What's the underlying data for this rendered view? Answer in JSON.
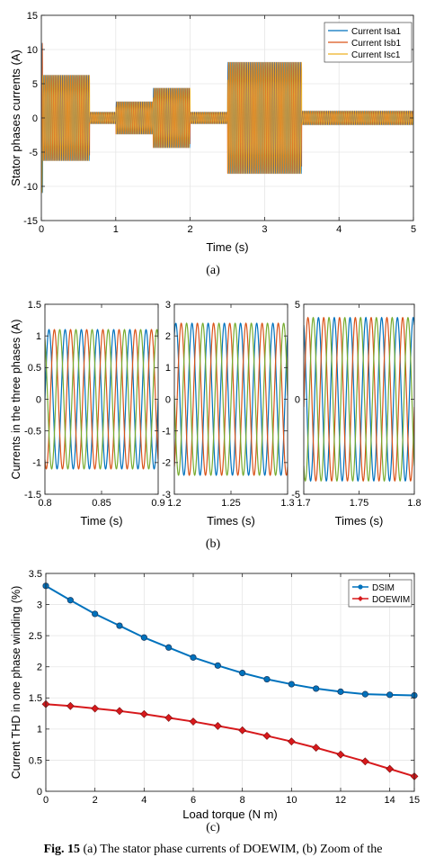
{
  "figure": {
    "caption_label": "Fig. 15",
    "caption_text": "(a) The stator phase currents of DOEWIM, (b) Zoom of the"
  },
  "chart_data": [
    {
      "type": "line",
      "panel_label": "(a)",
      "xlabel": "Time (s)",
      "ylabel": "Stator phases currents (A)",
      "xlim": [
        0,
        5
      ],
      "ylim": [
        -15,
        15
      ],
      "xticks": [
        0,
        1,
        2,
        3,
        4,
        5
      ],
      "yticks": [
        -15,
        -10,
        -5,
        0,
        5,
        10,
        15
      ],
      "grid": true,
      "legend_position": "top-right",
      "series": [
        {
          "name": "Current Isa1",
          "color": "#0072BD",
          "phase_deg": 0
        },
        {
          "name": "Current Isb1",
          "color": "#D95319",
          "phase_deg": -120
        },
        {
          "name": "Current Isc1",
          "color": "#EDB120",
          "phase_deg": 120
        }
      ],
      "segments": [
        {
          "t_start": 0.0,
          "t_end": 0.02,
          "amplitude": 11
        },
        {
          "t_start": 0.02,
          "t_end": 0.65,
          "amplitude": 6.3
        },
        {
          "t_start": 0.65,
          "t_end": 1.0,
          "amplitude": 0.85
        },
        {
          "t_start": 1.0,
          "t_end": 1.5,
          "amplitude": 2.4
        },
        {
          "t_start": 1.5,
          "t_end": 2.0,
          "amplitude": 4.4
        },
        {
          "t_start": 2.0,
          "t_end": 2.5,
          "amplitude": 0.85
        },
        {
          "t_start": 2.5,
          "t_end": 3.5,
          "amplitude": 8.2
        },
        {
          "t_start": 3.5,
          "t_end": 5.0,
          "amplitude": 1.0
        }
      ]
    },
    {
      "type": "line",
      "panel_label": "(b)",
      "ylabel": "Currents in the three phases (A)",
      "subplots": [
        {
          "xlabel": "Time (s)",
          "xlim": [
            0.8,
            0.9
          ],
          "ylim": [
            -1.5,
            1.5
          ],
          "xticks": [
            0.8,
            0.85,
            0.9
          ],
          "yticks": [
            -1.5,
            -1,
            -0.5,
            0,
            0.5,
            1,
            1.5
          ],
          "amplitude": 1.1,
          "frequency_hz": 70
        },
        {
          "xlabel": "Times (s)",
          "xlim": [
            1.2,
            1.3
          ],
          "ylim": [
            -3,
            3
          ],
          "xticks": [
            1.2,
            1.25,
            1.3
          ],
          "yticks": [
            -3,
            -2,
            -1,
            0,
            1,
            2,
            3
          ],
          "amplitude": 2.4,
          "frequency_hz": 70
        },
        {
          "xlabel": "Times (s)",
          "xlim": [
            1.7,
            1.8
          ],
          "ylim": [
            -5,
            5
          ],
          "xticks": [
            1.7,
            1.75,
            1.8
          ],
          "yticks": [
            -5,
            0,
            5
          ],
          "amplitude": 4.3,
          "frequency_hz": 70
        }
      ],
      "series_colors": [
        "#0072BD",
        "#D95319",
        "#77AC30"
      ]
    },
    {
      "type": "line",
      "panel_label": "(c)",
      "xlabel": "Load torque (N m)",
      "ylabel": "Current THD in one phase winding (%)",
      "xlim": [
        0,
        15
      ],
      "ylim": [
        0,
        3.5
      ],
      "xticks": [
        0,
        2,
        4,
        6,
        8,
        10,
        12,
        14,
        15
      ],
      "yticks": [
        0,
        0.5,
        1,
        1.5,
        2,
        2.5,
        3,
        3.5
      ],
      "grid": true,
      "legend_position": "top-right",
      "x": [
        0,
        1,
        2,
        3,
        4,
        5,
        6,
        7,
        8,
        9,
        10,
        11,
        12,
        13,
        14,
        15
      ],
      "series": [
        {
          "name": "DSIM",
          "color": "#0072BD",
          "marker": "circle",
          "values": [
            3.3,
            3.07,
            2.85,
            2.66,
            2.47,
            2.31,
            2.15,
            2.02,
            1.9,
            1.8,
            1.72,
            1.65,
            1.6,
            1.56,
            1.55,
            1.54
          ]
        },
        {
          "name": "DOEWIM",
          "color": "#D7191C",
          "marker": "diamond",
          "values": [
            1.4,
            1.37,
            1.33,
            1.29,
            1.24,
            1.18,
            1.12,
            1.05,
            0.98,
            0.89,
            0.8,
            0.7,
            0.59,
            0.48,
            0.36,
            0.24
          ]
        }
      ]
    }
  ]
}
